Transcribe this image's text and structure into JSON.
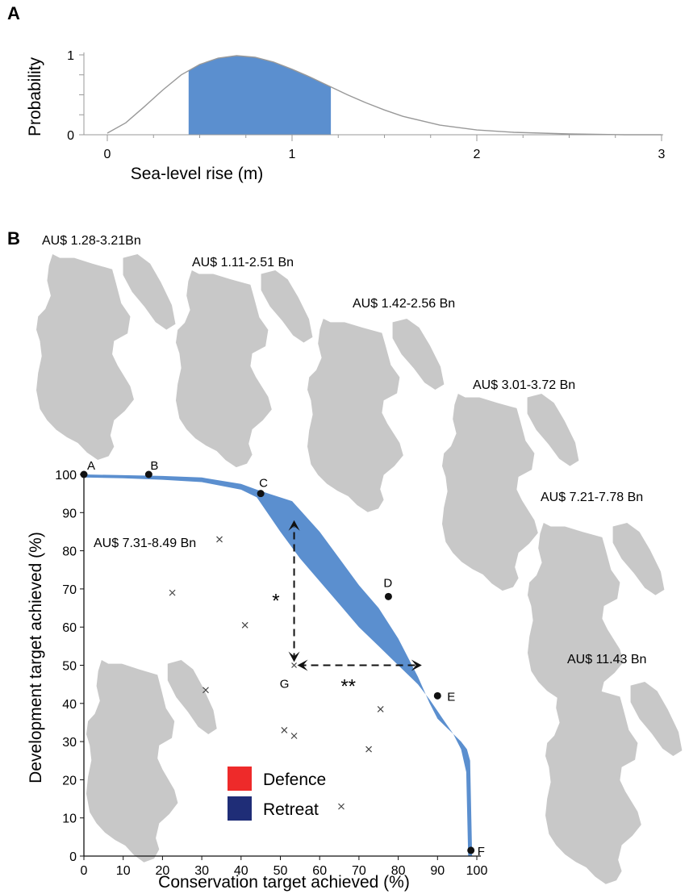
{
  "panels": {
    "a": "A",
    "b": "B"
  },
  "colors": {
    "band": "#5b8fcf",
    "defence": "#ee2a2a",
    "retreat": "#1f2d77",
    "land": "#c8c8c8"
  },
  "chart_data": [
    {
      "type": "area",
      "panel": "A",
      "title": "",
      "xlabel": "Sea-level rise (m)",
      "ylabel": "Probability",
      "xlim": [
        0,
        3
      ],
      "ylim": [
        0,
        1
      ],
      "xticks": [
        "0",
        "1",
        "2",
        "3"
      ],
      "yticks": [
        "0",
        "1"
      ],
      "curve": {
        "x": [
          0,
          0.1,
          0.2,
          0.3,
          0.4,
          0.5,
          0.6,
          0.7,
          0.8,
          0.9,
          1.0,
          1.1,
          1.2,
          1.3,
          1.4,
          1.5,
          1.6,
          1.8,
          2.0,
          2.2,
          2.5,
          2.8,
          3.0
        ],
        "y": [
          0.02,
          0.15,
          0.35,
          0.56,
          0.75,
          0.88,
          0.96,
          0.99,
          0.97,
          0.91,
          0.82,
          0.72,
          0.61,
          0.5,
          0.4,
          0.31,
          0.23,
          0.12,
          0.06,
          0.03,
          0.01,
          0.0,
          0.0
        ]
      },
      "shaded_range": [
        0.44,
        1.21
      ]
    },
    {
      "type": "area",
      "panel": "B",
      "title": "",
      "xlabel": "Conservation target achieved (%)",
      "ylabel": "Development target achieved (%)",
      "xlim": [
        0,
        100
      ],
      "ylim": [
        0,
        100
      ],
      "xticks": [
        "0",
        "10",
        "20",
        "30",
        "40",
        "50",
        "60",
        "70",
        "80",
        "90",
        "100"
      ],
      "yticks": [
        "0",
        "10",
        "20",
        "30",
        "40",
        "50",
        "60",
        "70",
        "80",
        "90",
        "100"
      ],
      "frontier_upper": {
        "x": [
          0,
          10,
          20,
          30,
          40,
          44,
          47,
          53,
          60,
          65,
          70,
          75,
          80,
          85,
          88,
          90,
          92,
          94,
          96,
          97.5,
          98.3,
          98.8
        ],
        "y": [
          100,
          99.8,
          99.6,
          99.2,
          97.5,
          96,
          95,
          93,
          85,
          78,
          71,
          65,
          57,
          47,
          40,
          36,
          34,
          32,
          30,
          28,
          25,
          0
        ]
      },
      "frontier_lower": {
        "x": [
          0,
          10,
          20,
          30,
          40,
          44,
          50,
          55,
          60,
          65,
          70,
          75,
          80,
          85,
          88,
          90,
          92,
          94,
          96,
          97.3,
          97.8
        ],
        "y": [
          99.2,
          99,
          98.6,
          98,
          96,
          94,
          85,
          78,
          72,
          66,
          60,
          55,
          50,
          45,
          41,
          38,
          35,
          32,
          28,
          22,
          0
        ]
      },
      "labeled_points": [
        {
          "label": "A",
          "x": 0,
          "y": 100
        },
        {
          "label": "B",
          "x": 16.5,
          "y": 100
        },
        {
          "label": "C",
          "x": 45,
          "y": 95
        },
        {
          "label": "D",
          "x": 77.5,
          "y": 68
        },
        {
          "label": "E",
          "x": 90,
          "y": 42
        },
        {
          "label": "F",
          "x": 98.5,
          "y": 1.5
        }
      ],
      "crosses": [
        {
          "x": 34.5,
          "y": 83
        },
        {
          "x": 22.5,
          "y": 69
        },
        {
          "x": 41,
          "y": 60.5
        },
        {
          "x": 31,
          "y": 43.5
        },
        {
          "x": 51,
          "y": 33
        },
        {
          "x": 53.5,
          "y": 31.5
        },
        {
          "x": 75.5,
          "y": 38.5
        },
        {
          "x": 72.5,
          "y": 28
        },
        {
          "x": 65.5,
          "y": 13
        }
      ],
      "point_g": {
        "label": "G",
        "x": 53.5,
        "y": 50
      },
      "arrows": [
        {
          "label": "*",
          "from": [
            53.5,
            50
          ],
          "to": [
            53.5,
            88
          ],
          "double_headed": true
        },
        {
          "label": "**",
          "from": [
            53.5,
            50
          ],
          "to": [
            86,
            50
          ],
          "double_headed": true
        }
      ],
      "legend": {
        "position": "bottom-center",
        "entries": [
          "Defence",
          "Retreat"
        ]
      },
      "cost_labels": [
        {
          "text": "AU$ 1.28-3.21Bn",
          "point": "A"
        },
        {
          "text": "AU$ 1.11-2.51 Bn",
          "point": "B"
        },
        {
          "text": "AU$ 1.42-2.56 Bn",
          "point": "C"
        },
        {
          "text": "AU$ 3.01-3.72 Bn",
          "point": "D"
        },
        {
          "text": "AU$ 7.21-7.78 Bn",
          "point": "E"
        },
        {
          "text": "AU$ 11.43 Bn",
          "point": "F"
        },
        {
          "text": "AU$ 7.31-8.49 Bn",
          "point": "G"
        }
      ]
    }
  ]
}
